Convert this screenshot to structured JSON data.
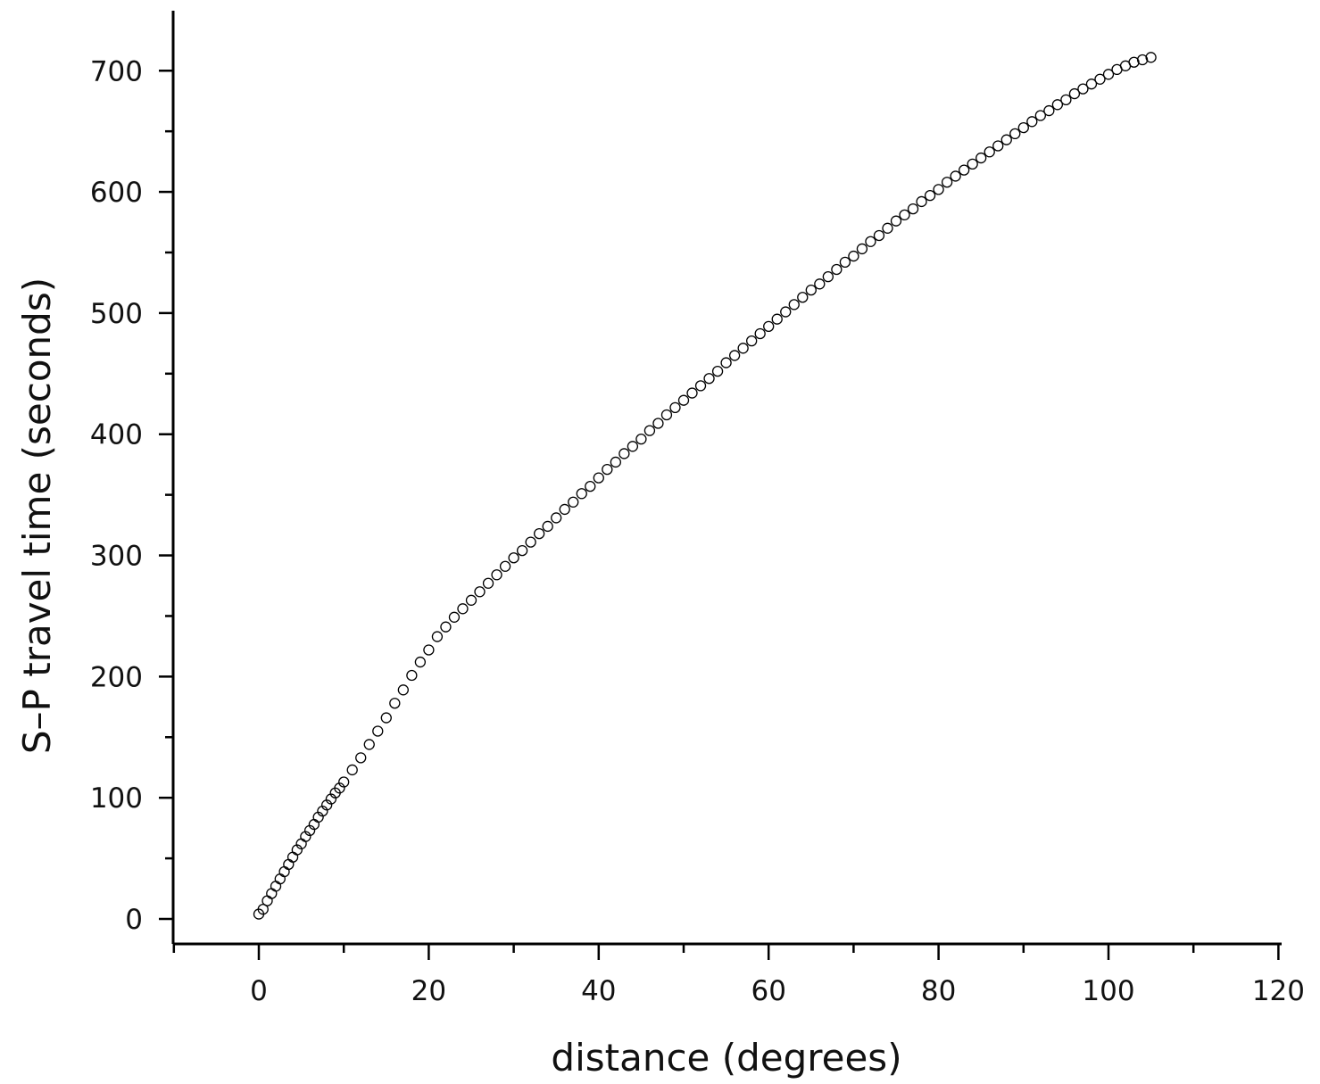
{
  "chart_data": {
    "type": "scatter",
    "xlabel": "distance (degrees)",
    "ylabel": "S–P travel time (seconds)",
    "xlim": [
      -10,
      120
    ],
    "ylim": [
      -20,
      750
    ],
    "x_major_ticks": [
      0,
      20,
      40,
      60,
      80,
      100,
      120
    ],
    "x_minor_ticks": [
      -10,
      10,
      30,
      50,
      70,
      90,
      110
    ],
    "y_major_ticks": [
      0,
      100,
      200,
      300,
      400,
      500,
      600,
      700
    ],
    "y_minor_ticks": [
      50,
      150,
      250,
      350,
      450,
      550,
      650
    ],
    "x_tick_labels": [
      "0",
      "20",
      "40",
      "60",
      "80",
      "100",
      "120"
    ],
    "y_tick_labels": [
      "0",
      "100",
      "200",
      "300",
      "400",
      "500",
      "600",
      "700"
    ],
    "marker": "hollow-circle",
    "marker_color": "#000000",
    "grid": false,
    "series": [
      {
        "x": [
          0,
          0.5,
          1,
          1.5,
          2,
          2.5,
          3,
          3.5,
          4,
          4.5,
          5,
          5.5,
          6,
          6.5,
          7,
          7.5,
          8,
          8.5,
          9,
          9.5,
          10,
          11,
          12,
          13,
          14,
          15,
          16,
          17,
          18,
          19,
          20,
          21,
          22,
          23,
          24,
          25,
          26,
          27,
          28,
          29,
          30,
          31,
          32,
          33,
          34,
          35,
          36,
          37,
          38,
          39,
          40,
          41,
          42,
          43,
          44,
          45,
          46,
          47,
          48,
          49,
          50,
          51,
          52,
          53,
          54,
          55,
          56,
          57,
          58,
          59,
          60,
          61,
          62,
          63,
          64,
          65,
          66,
          67,
          68,
          69,
          70,
          71,
          72,
          73,
          74,
          75,
          76,
          77,
          78,
          79,
          80,
          81,
          82,
          83,
          84,
          85,
          86,
          87,
          88,
          89,
          90,
          91,
          92,
          93,
          94,
          95,
          96,
          97,
          98,
          99,
          100,
          101,
          102,
          103,
          104,
          105
        ],
        "y": [
          4,
          8,
          15,
          21,
          27,
          33,
          39,
          45,
          51,
          57,
          62,
          68,
          73,
          78,
          84,
          89,
          94,
          99,
          104,
          108,
          113,
          123,
          133,
          144,
          155,
          166,
          178,
          189,
          201,
          212,
          222,
          233,
          241,
          249,
          256,
          263,
          270,
          277,
          284,
          291,
          298,
          304,
          311,
          318,
          324,
          331,
          338,
          344,
          351,
          357,
          364,
          371,
          377,
          384,
          390,
          396,
          403,
          409,
          416,
          422,
          428,
          434,
          440,
          446,
          452,
          459,
          465,
          471,
          477,
          483,
          489,
          495,
          501,
          507,
          513,
          519,
          524,
          530,
          536,
          542,
          547,
          553,
          559,
          564,
          570,
          576,
          581,
          586,
          592,
          597,
          602,
          608,
          613,
          618,
          623,
          628,
          633,
          638,
          643,
          648,
          653,
          658,
          663,
          667,
          672,
          676,
          681,
          685,
          689,
          693,
          697,
          701,
          704,
          707,
          709,
          711
        ]
      }
    ]
  }
}
